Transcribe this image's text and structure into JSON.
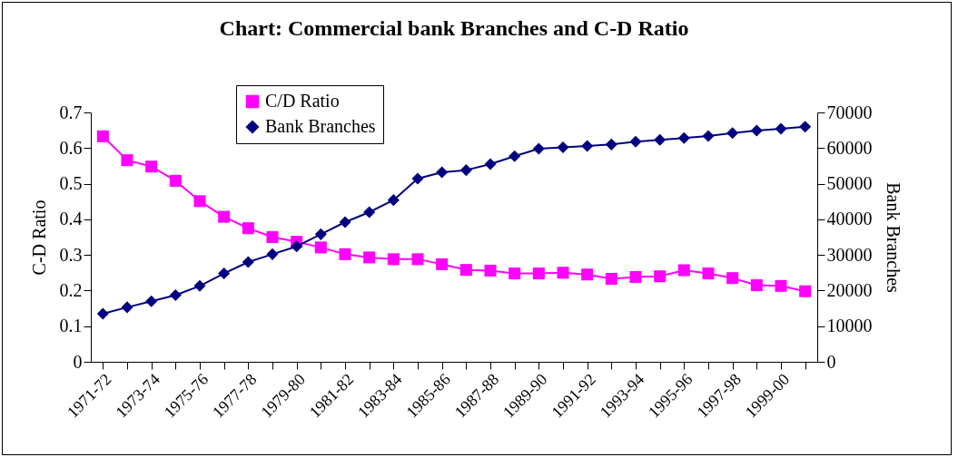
{
  "chart_data": {
    "type": "line",
    "title": "Chart: Commercial bank Branches and C-D Ratio",
    "ylabel": "C-D Ratio",
    "y2label": "Bank Branches",
    "categories": [
      "1971-72",
      null,
      "1973-74",
      null,
      "1975-76",
      null,
      "1977-78",
      null,
      "1979-80",
      null,
      "1981-82",
      null,
      "1983-84",
      null,
      "1985-86",
      null,
      "1987-88",
      null,
      "1989-90",
      null,
      "1991-92",
      null,
      "1993-94",
      null,
      "1995-96",
      null,
      "1997-98",
      null,
      "1999-00",
      null
    ],
    "ylim": [
      0,
      0.7
    ],
    "yticks": [
      0,
      0.1,
      0.2,
      0.3,
      0.4,
      0.5,
      0.6,
      0.7
    ],
    "y2lim": [
      0,
      70000
    ],
    "y2ticks": [
      0,
      10000,
      20000,
      30000,
      40000,
      50000,
      60000,
      70000
    ],
    "legend": "top",
    "series": [
      {
        "name": "C/D Ratio",
        "color": "#ff00ff",
        "marker": "square",
        "values": [
          0.633,
          0.566,
          0.548,
          0.508,
          0.451,
          0.407,
          0.375,
          0.35,
          0.337,
          0.321,
          0.302,
          0.293,
          0.288,
          0.288,
          0.274,
          0.258,
          0.256,
          0.248,
          0.248,
          0.25,
          0.245,
          0.233,
          0.238,
          0.24,
          0.257,
          0.248,
          0.235,
          0.215,
          0.213,
          0.198
        ]
      },
      {
        "name": "Bank Branches",
        "color": "#000080",
        "marker": "diamond",
        "axis": "y2",
        "values": [
          13500,
          15300,
          17000,
          18700,
          21300,
          24800,
          28000,
          30200,
          32400,
          35800,
          39200,
          42000,
          45400,
          51400,
          53200,
          53800,
          55500,
          57700,
          59800,
          60200,
          60600,
          61000,
          61800,
          62300,
          62800,
          63400,
          64200,
          64900,
          65400,
          66000
        ]
      }
    ]
  }
}
